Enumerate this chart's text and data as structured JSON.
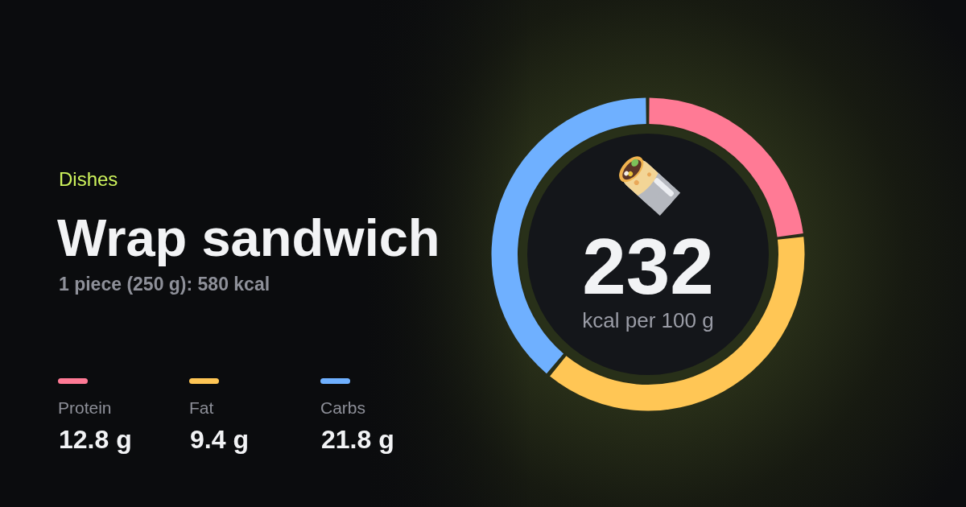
{
  "chart_data": {
    "type": "donut",
    "title": "Wrap sandwich",
    "subtitle": "1 piece (250 g): 580 kcal",
    "categories": [
      "Protein",
      "Fat",
      "Carbs"
    ],
    "values": [
      23,
      38,
      39
    ],
    "colors": [
      "#ff7a95",
      "#ffc655",
      "#6fb0ff"
    ],
    "legend": "left",
    "annotations": [
      "Dishes",
      "232",
      "kcal per 100 g",
      "12.8 g",
      "9.4 g",
      "21.8 g"
    ]
  }
}
